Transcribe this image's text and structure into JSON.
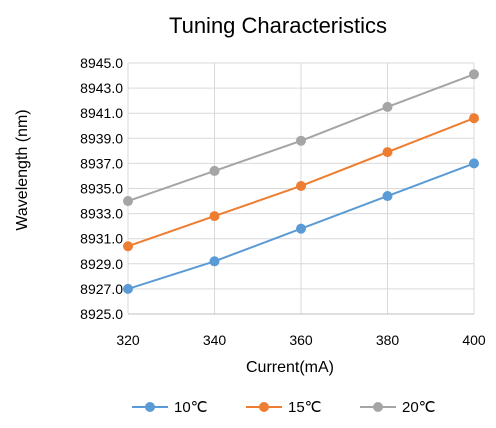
{
  "chart_data": {
    "type": "line",
    "title": "Tuning Characteristics",
    "xlabel": "Current(mA)",
    "ylabel": "Wavelength (nm)",
    "x": [
      320,
      340,
      360,
      380,
      400
    ],
    "xlim": [
      320,
      400
    ],
    "ylim": [
      8925.0,
      8945.0
    ],
    "y_ticks": [
      8925.0,
      8927.0,
      8929.0,
      8931.0,
      8933.0,
      8935.0,
      8937.0,
      8939.0,
      8941.0,
      8943.0,
      8945.0
    ],
    "x_ticks": [
      320,
      340,
      360,
      380,
      400
    ],
    "y_tick_labels": [
      "8925.0",
      "8927.0",
      "8929.0",
      "8931.0",
      "8933.0",
      "8935.0",
      "8937.0",
      "8939.0",
      "8941.0",
      "8943.0",
      "8945.0"
    ],
    "x_tick_labels": [
      "320",
      "340",
      "360",
      "380",
      "400"
    ],
    "grid": true,
    "legend_position": "bottom",
    "series": [
      {
        "name": "10℃",
        "color": "#5b9bd5",
        "values": [
          8927.0,
          8929.2,
          8931.8,
          8934.4,
          8937.0
        ]
      },
      {
        "name": "15℃",
        "color": "#ed7d31",
        "values": [
          8930.4,
          8932.8,
          8935.2,
          8937.9,
          8940.6
        ]
      },
      {
        "name": "20℃",
        "color": "#a5a5a5",
        "values": [
          8934.0,
          8936.4,
          8938.8,
          8941.5,
          8944.1
        ]
      }
    ]
  }
}
